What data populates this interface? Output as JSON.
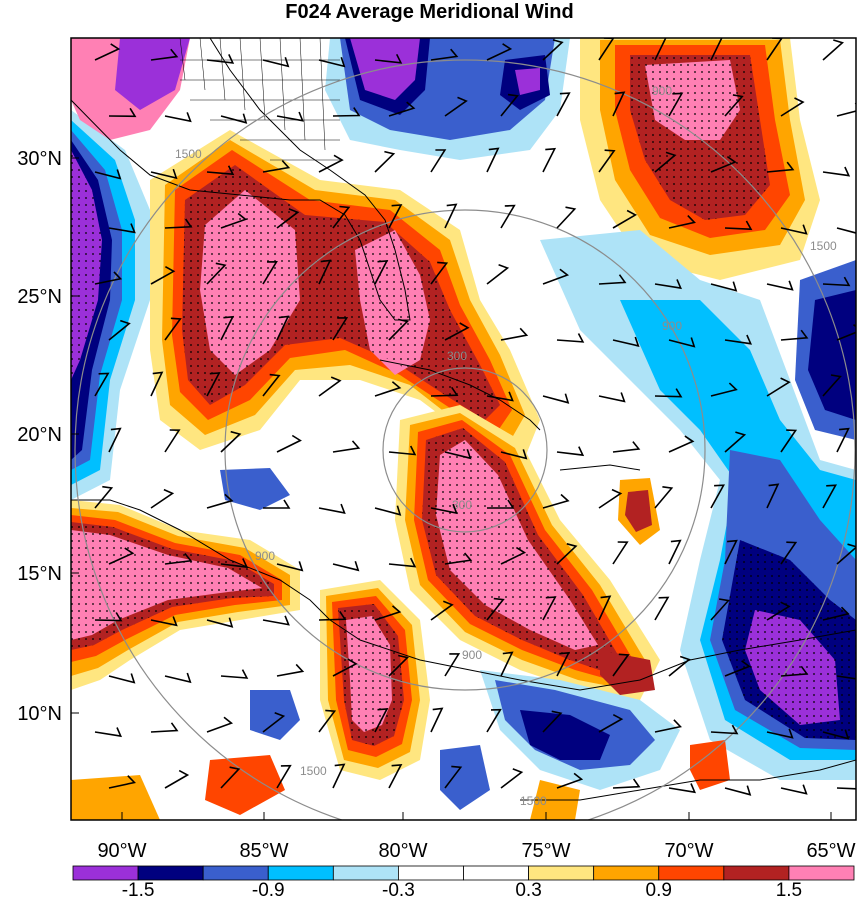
{
  "title": "F024 Average Meridional Wind",
  "lat_labels": [
    "30°N",
    "25°N",
    "20°N",
    "15°N",
    "10°N"
  ],
  "lon_labels": [
    "90°W",
    "85°W",
    "80°W",
    "75°W",
    "70°W",
    "65°W"
  ],
  "ring_labels": [
    "300",
    "300",
    "900",
    "900",
    "900",
    "1500",
    "1500",
    "1500",
    "1500",
    "900"
  ],
  "colorbar": {
    "colors": [
      "#9b30d9",
      "#00007f",
      "#3a5fcd",
      "#00bfff",
      "#aee3f7",
      "#ffffff",
      "#ffffff",
      "#ffe680",
      "#ffa500",
      "#ff4500",
      "#b22222",
      "#ff80b4"
    ],
    "labels": [
      "-1.5",
      "-0.9",
      "-0.3",
      "0.3",
      "0.9",
      "1.5"
    ]
  },
  "fill_colors": {
    "neg3": "#9b30d9",
    "neg25": "#00007f",
    "neg2": "#3a5fcd",
    "neg15": "#00bfff",
    "neg1": "#aee3f7",
    "pos1": "#ffe680",
    "pos15": "#ffa500",
    "pos2": "#ff4500",
    "pos25": "#b22222",
    "pos3": "#ff80b4"
  }
}
